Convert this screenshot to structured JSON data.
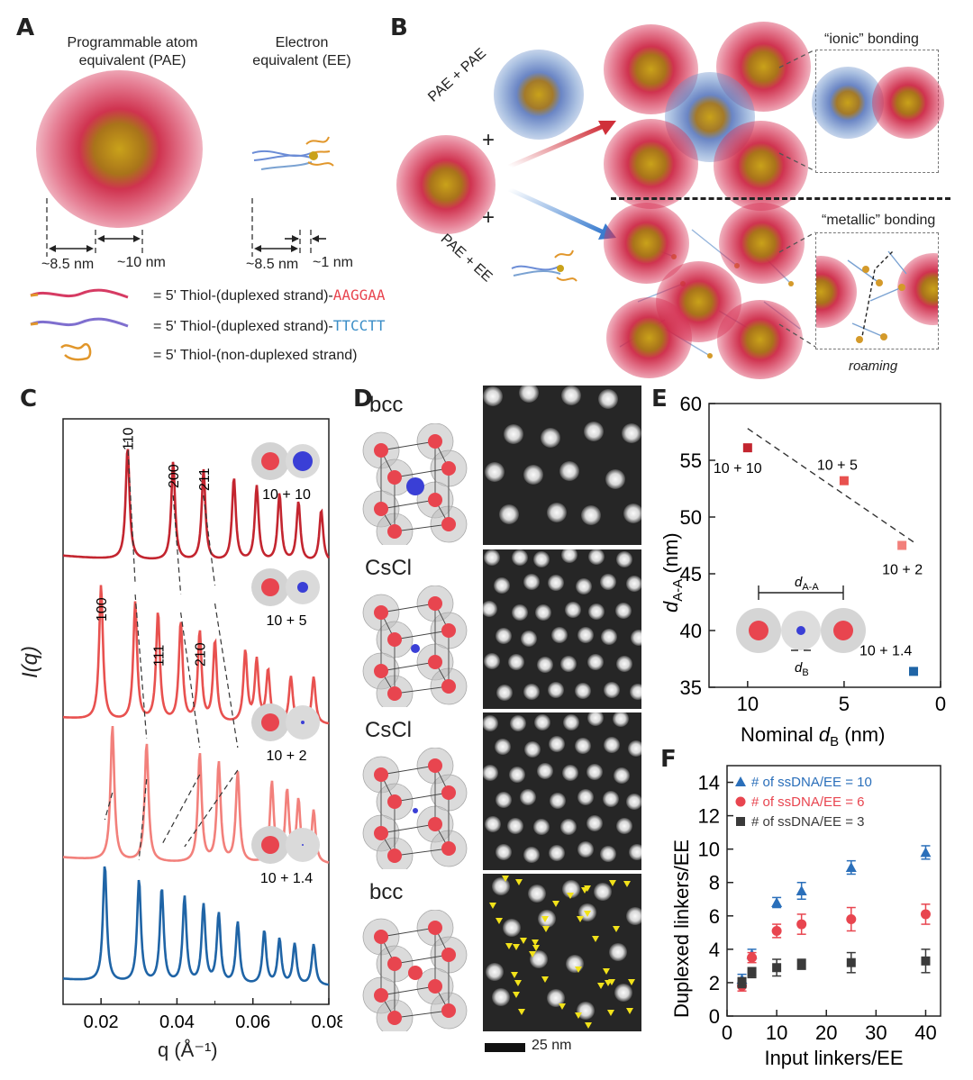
{
  "panels": {
    "A": "A",
    "B": "B",
    "C": "C",
    "D": "D",
    "E": "E",
    "F": "F"
  },
  "panel_a": {
    "pae_title": [
      "Programmable atom",
      "equivalent (PAE)"
    ],
    "ee_title": [
      "Electron",
      "equivalent (EE)"
    ],
    "pae_dims": [
      "~8.5 nm",
      "~10 nm"
    ],
    "ee_dims": [
      "~8.5 nm",
      "~1 nm"
    ],
    "legend": [
      {
        "prefix": "= 5' Thiol-(duplexed strand)-",
        "seq": "AAGGAA",
        "color": "#e8454f"
      },
      {
        "prefix": "= 5' Thiol-(duplexed strand)-",
        "seq": "TTCCTT",
        "color": "#3b8ec7"
      },
      {
        "prefix": "= 5' Thiol-(non-duplexed strand)",
        "seq": "",
        "color": "#222222"
      }
    ]
  },
  "panel_b": {
    "route_top": "PAE + PAE",
    "route_bottom": "PAE + EE",
    "plus": "+",
    "ionic": "“ionic” bonding",
    "metallic": "“metallic” bonding",
    "roaming": "roaming"
  },
  "panel_c": {
    "ylabel": "I(q)",
    "xlabel": "q (Å⁻¹)",
    "x_ticks": [
      "0.02",
      "0.04",
      "0.06",
      "0.08"
    ],
    "peak_labels_top": [
      "110",
      "200",
      "211"
    ],
    "peak_labels_second": [
      "100",
      "111",
      "210"
    ],
    "insets": [
      "10 + 10",
      "10 + 5",
      "10 + 2",
      "10 + 1.4"
    ]
  },
  "panel_d": {
    "rows": [
      "bcc",
      "CsCl",
      "CsCl",
      "bcc"
    ],
    "scale_bar": "25 nm"
  },
  "chart_data": [
    {
      "type": "line",
      "title": "",
      "xlabel": "q (Å⁻¹)",
      "ylabel": "I(q)",
      "xlim": [
        0.01,
        0.08
      ],
      "series": [
        {
          "name": "10 + 10",
          "color": "#c3252f",
          "peaks": [
            0.027,
            0.039,
            0.047,
            0.055,
            0.061,
            0.067,
            0.072,
            0.078
          ]
        },
        {
          "name": "10 + 5",
          "color": "#e8514f",
          "peaks": [
            0.02,
            0.029,
            0.035,
            0.041,
            0.046,
            0.05,
            0.058,
            0.061,
            0.064,
            0.07,
            0.076
          ]
        },
        {
          "name": "10 + 2",
          "color": "#f2807b",
          "peaks": [
            0.023,
            0.032,
            0.046,
            0.051,
            0.056,
            0.065,
            0.069,
            0.072,
            0.076
          ]
        },
        {
          "name": "10 + 1.4",
          "color": "#1f64a6",
          "peaks": [
            0.021,
            0.03,
            0.036,
            0.042,
            0.047,
            0.051,
            0.056,
            0.063,
            0.067,
            0.071,
            0.076
          ]
        }
      ]
    },
    {
      "type": "scatter",
      "xlabel": "Nominal d_B (nm)",
      "ylabel": "d_A-A (nm)",
      "xlim": [
        12,
        0
      ],
      "ylim": [
        35,
        60
      ],
      "x_ticks": [
        "10",
        "5",
        "0"
      ],
      "y_ticks": [
        "35",
        "40",
        "45",
        "50",
        "55",
        "60"
      ],
      "points": [
        {
          "label": "10 + 10",
          "x": 10,
          "y": 56.1,
          "color": "#c3252f"
        },
        {
          "label": "10 + 5",
          "x": 5,
          "y": 53.2,
          "color": "#e8514f"
        },
        {
          "label": "10 + 2",
          "x": 2,
          "y": 47.5,
          "color": "#f2807b"
        },
        {
          "label": "10 + 1.4",
          "x": 1.4,
          "y": 36.4,
          "color": "#1f64a6"
        }
      ],
      "fit_line": [
        [
          10,
          57.8
        ],
        [
          1.4,
          47.8
        ]
      ],
      "inset_labels": [
        "d_A-A",
        "d_B"
      ]
    },
    {
      "type": "scatter",
      "xlabel": "Input linkers/EE",
      "ylabel": "Duplexed linkers/EE",
      "xlim": [
        0,
        43
      ],
      "ylim": [
        0,
        15
      ],
      "x_ticks": [
        "0",
        "10",
        "20",
        "30",
        "40"
      ],
      "y_ticks": [
        "0",
        "2",
        "4",
        "6",
        "8",
        "10",
        "12",
        "14"
      ],
      "legend_position": "top-left",
      "series": [
        {
          "name": "# of ssDNA/EE = 10",
          "color": "#2a6fba",
          "marker": "triangle",
          "x": [
            3,
            5,
            10,
            15,
            25,
            40
          ],
          "y": [
            2.2,
            3.7,
            6.8,
            7.5,
            8.9,
            9.8
          ],
          "err": [
            0.3,
            0.3,
            0.3,
            0.5,
            0.4,
            0.4
          ]
        },
        {
          "name": "# of ssDNA/EE = 6",
          "color": "#e8454f",
          "marker": "circle",
          "x": [
            3,
            5,
            10,
            15,
            25,
            40
          ],
          "y": [
            1.8,
            3.5,
            5.1,
            5.5,
            5.8,
            6.1
          ],
          "err": [
            0.3,
            0.3,
            0.4,
            0.6,
            0.7,
            0.6
          ]
        },
        {
          "name": "# of ssDNA/EE = 3",
          "color": "#3a3a3a",
          "marker": "square",
          "x": [
            3,
            5,
            10,
            15,
            25,
            40
          ],
          "y": [
            2.0,
            2.6,
            2.9,
            3.1,
            3.2,
            3.3
          ],
          "err": [
            0.3,
            0.3,
            0.5,
            0.3,
            0.6,
            0.7
          ]
        }
      ]
    }
  ]
}
